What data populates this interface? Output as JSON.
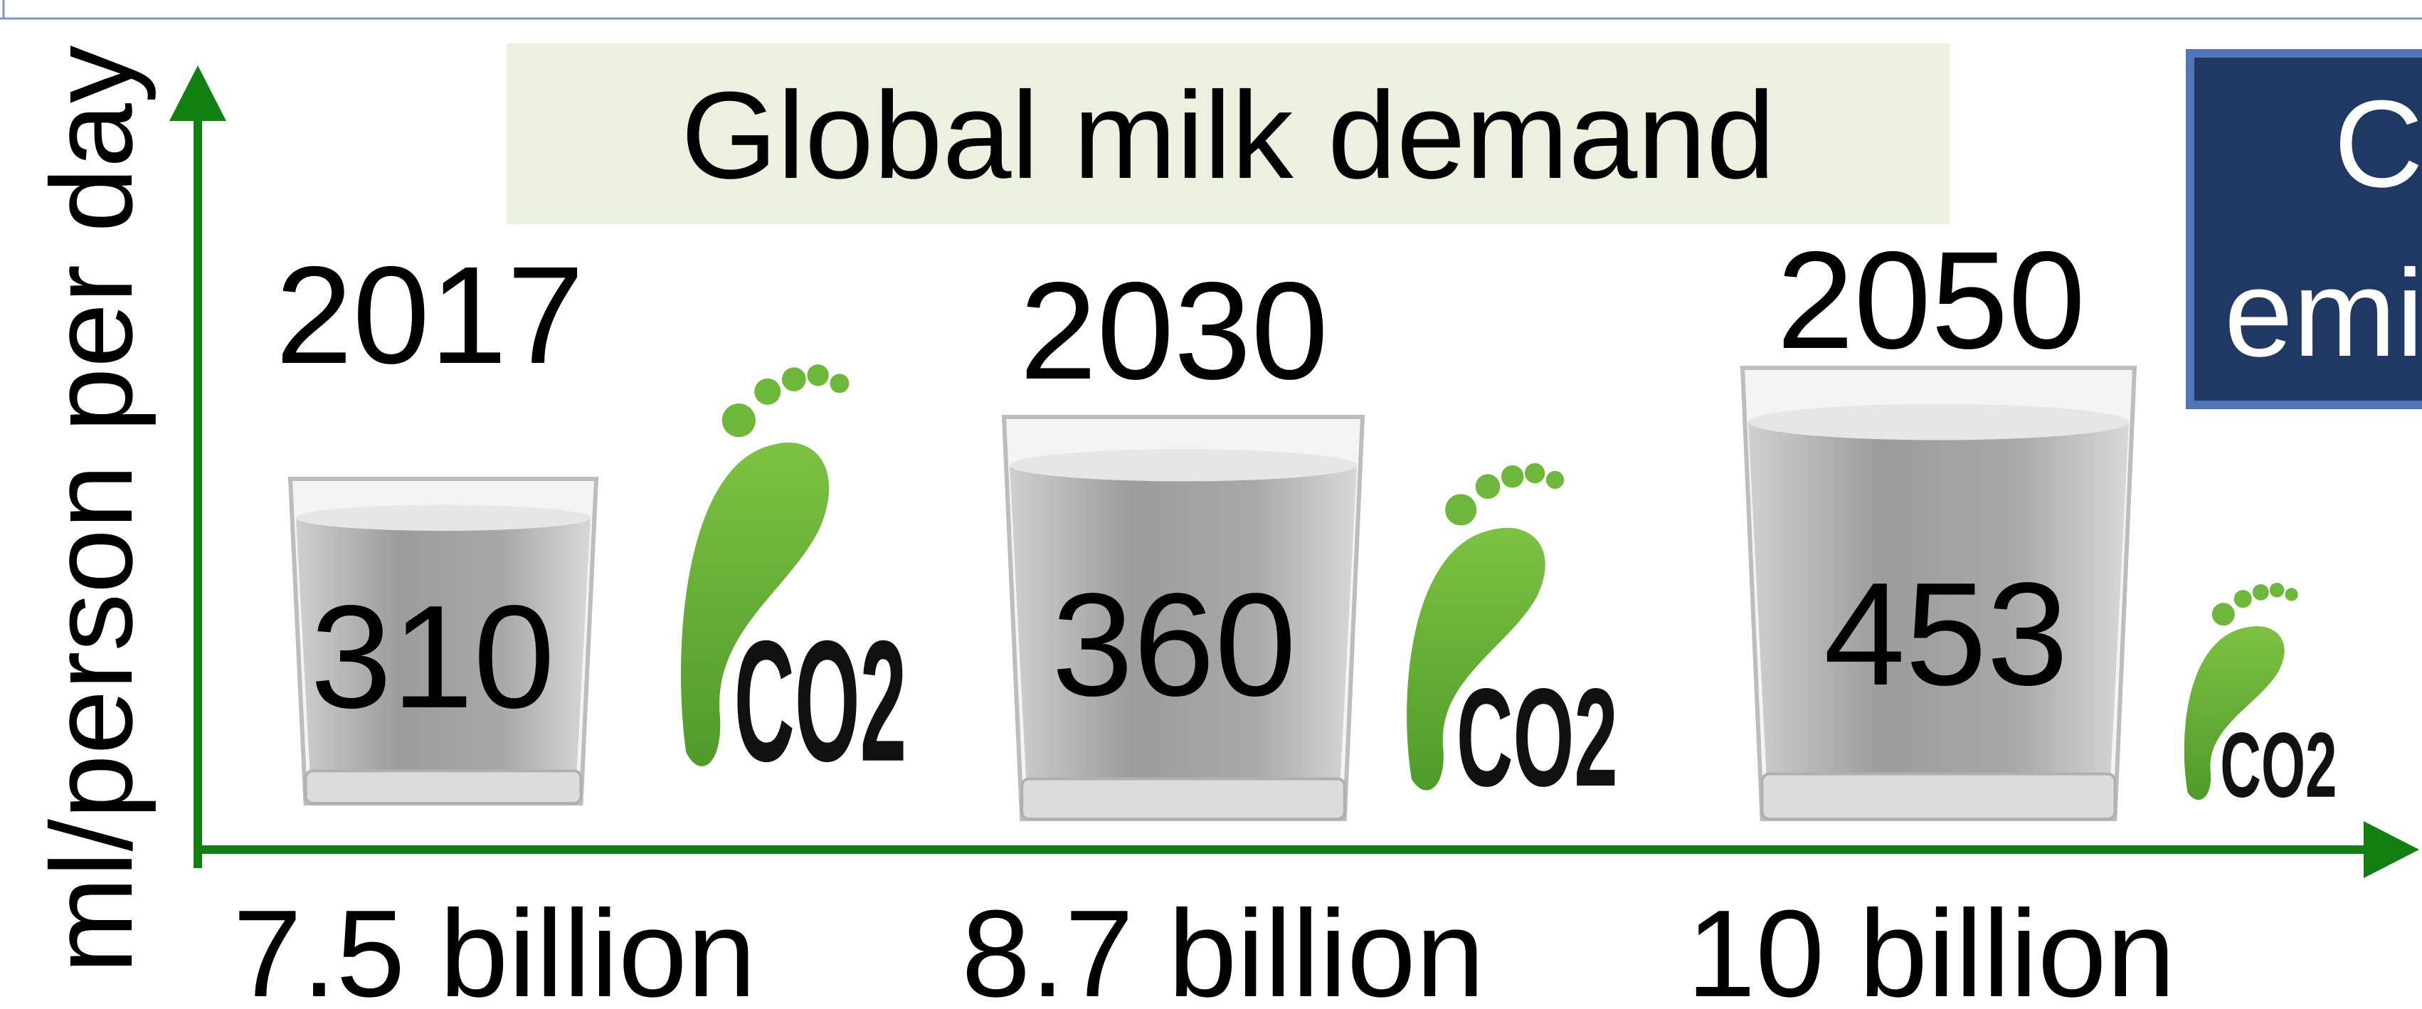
{
  "title": "Global milk demand",
  "y_axis_label": "ml/person per day",
  "items": [
    {
      "year": "2017",
      "value": "310",
      "population": "7.5 billion",
      "icon_text": "CO2"
    },
    {
      "year": "2030",
      "value": "360",
      "population": "8.7 billion",
      "icon_text": "CO2"
    },
    {
      "year": "2050",
      "value": "453",
      "population": "10 billion",
      "icon_text": "CO2"
    }
  ],
  "side_box": {
    "lines": [
      "C",
      "emi"
    ]
  }
}
